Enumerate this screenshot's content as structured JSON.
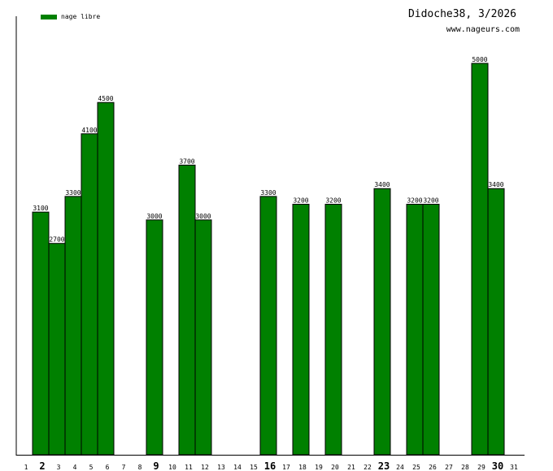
{
  "header": {
    "title": "Didoche38, 3/2026",
    "site": "www.nageurs.com"
  },
  "legend": {
    "label": "nage libre",
    "color": "#008000"
  },
  "chart_data": {
    "type": "bar",
    "categories": [
      "1",
      "2",
      "3",
      "4",
      "5",
      "6",
      "7",
      "8",
      "9",
      "10",
      "11",
      "12",
      "13",
      "14",
      "15",
      "16",
      "17",
      "18",
      "19",
      "20",
      "21",
      "22",
      "23",
      "24",
      "25",
      "26",
      "27",
      "28",
      "29",
      "30",
      "31"
    ],
    "emphasized_categories": [
      "2",
      "9",
      "16",
      "23",
      "30"
    ],
    "series": [
      {
        "name": "nage libre",
        "color": "#008000",
        "values": [
          null,
          3100,
          2700,
          3300,
          4100,
          4500,
          null,
          null,
          3000,
          null,
          3700,
          3000,
          null,
          null,
          null,
          3300,
          null,
          3200,
          null,
          3200,
          null,
          null,
          3400,
          null,
          3200,
          3200,
          null,
          null,
          5000,
          3400,
          null
        ]
      }
    ],
    "ylim": [
      0,
      5800
    ],
    "grid": false,
    "legend_position": "top-left"
  }
}
